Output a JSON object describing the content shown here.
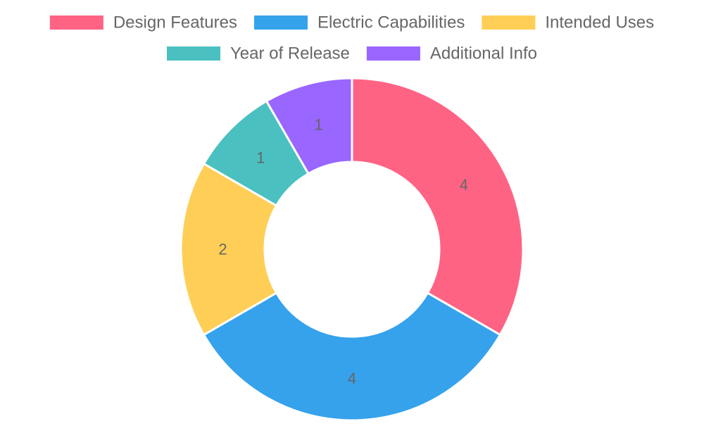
{
  "chart_data": {
    "type": "doughnut",
    "title": "",
    "legend": {
      "position": "top"
    },
    "categories": [
      "Design Features",
      "Electric Capabilities",
      "Intended Uses",
      "Year of Release",
      "Additional Info"
    ],
    "values": [
      4,
      4,
      2,
      1,
      1
    ],
    "colors": [
      "#ff6384",
      "#36a2eb",
      "#ffce56",
      "#4bc0c0",
      "#9966ff"
    ],
    "label_color": "#666666",
    "border_color": "#ffffff"
  }
}
